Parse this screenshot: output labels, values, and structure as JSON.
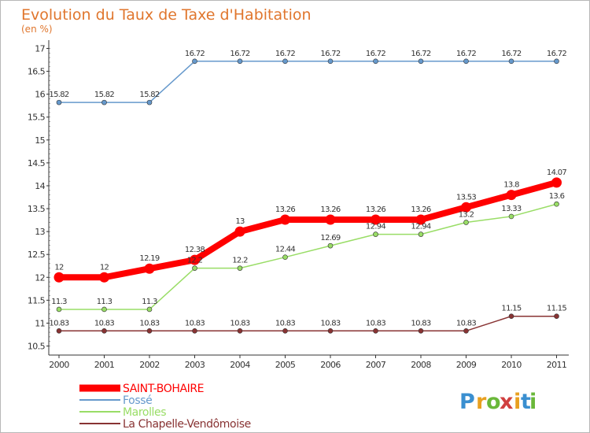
{
  "chart_data": {
    "type": "line",
    "title": "Evolution du Taux de Taxe d'Habitation",
    "subtitle": "(en %)",
    "xlabel": "",
    "ylabel": "",
    "categories": [
      "2000",
      "2001",
      "2002",
      "2003",
      "2004",
      "2005",
      "2006",
      "2007",
      "2008",
      "2009",
      "2010",
      "2011"
    ],
    "ylim": [
      10.5,
      17
    ],
    "yticks": [
      "10.5",
      "11",
      "11.5",
      "12",
      "12.5",
      "13",
      "13.5",
      "14",
      "14.5",
      "15",
      "15.5",
      "16",
      "16.5",
      "17"
    ],
    "grid": false,
    "legend_position": "bottom-left",
    "series": [
      {
        "name": "SAINT-BOHAIRE",
        "color": "#ff0000",
        "values": [
          12,
          12,
          12.19,
          12.38,
          13,
          13.26,
          13.26,
          13.26,
          13.26,
          13.53,
          13.8,
          14.07
        ],
        "labels": [
          "12",
          "12",
          "12.19",
          "12.38",
          "13",
          "13.26",
          "13.26",
          "13.26",
          "13.26",
          "13.53",
          "13.8",
          "14.07"
        ]
      },
      {
        "name": "Fossé",
        "color": "#6699cc",
        "values": [
          15.82,
          15.82,
          15.82,
          16.72,
          16.72,
          16.72,
          16.72,
          16.72,
          16.72,
          16.72,
          16.72,
          16.72
        ],
        "labels": [
          "15.82",
          "15.82",
          "15.82",
          "16.72",
          "16.72",
          "16.72",
          "16.72",
          "16.72",
          "16.72",
          "16.72",
          "16.72",
          "16.72"
        ]
      },
      {
        "name": "Marolles",
        "color": "#99dd66",
        "values": [
          11.3,
          11.3,
          11.3,
          12.2,
          12.2,
          12.44,
          12.69,
          12.94,
          12.94,
          13.2,
          13.33,
          13.6
        ],
        "labels": [
          "11.3",
          "11.3",
          "11.3",
          "12.2",
          "12.2",
          "12.44",
          "12.69",
          "12.94",
          "12.94",
          "13.2",
          "13.33",
          "13.6"
        ]
      },
      {
        "name": "La Chapelle-Vendômoise",
        "color": "#883333",
        "values": [
          10.83,
          10.83,
          10.83,
          10.83,
          10.83,
          10.83,
          10.83,
          10.83,
          10.83,
          10.83,
          11.15,
          11.15
        ],
        "labels": [
          "10.83",
          "10.83",
          "10.83",
          "10.83",
          "10.83",
          "10.83",
          "10.83",
          "10.83",
          "10.83",
          "10.83",
          "11.15",
          "11.15"
        ]
      }
    ]
  },
  "logo": {
    "letters": [
      "P",
      "r",
      "o",
      "x",
      "i",
      "t",
      "i"
    ],
    "colors": [
      "#3a8fd0",
      "#e8a020",
      "#6ab83a",
      "#d04040",
      "#e8a020",
      "#3a8fd0",
      "#6ab83a"
    ]
  }
}
